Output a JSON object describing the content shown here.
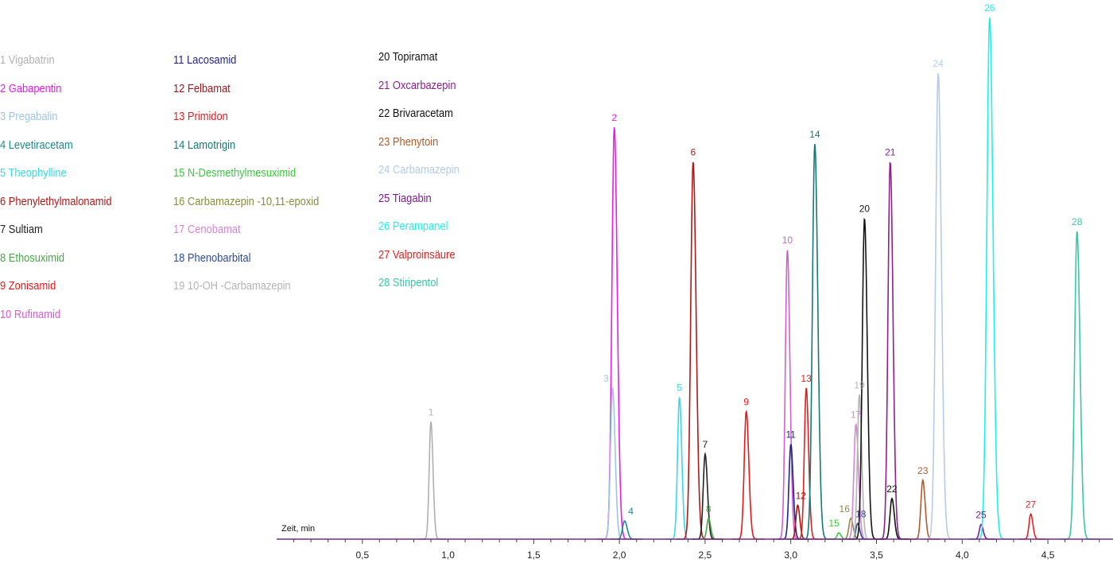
{
  "chart_data": {
    "type": "line",
    "xlabel": "Zeit, min",
    "xlim": [
      0.0,
      4.88
    ],
    "ylim": [
      0,
      1.0
    ],
    "grid": false,
    "legend_position": "top-left",
    "x_ticks": [
      "0,5",
      "1,0",
      "1,5",
      "2,0",
      "2,5",
      "3,0",
      "3,5",
      "4,0",
      "4,5"
    ],
    "x_tick_values": [
      0.5,
      1.0,
      1.5,
      2.0,
      2.5,
      3.0,
      3.5,
      4.0,
      4.5
    ],
    "series": [
      {
        "id": "1",
        "name": "1 Vigabatrin",
        "color": "#b0b0b0",
        "rt": 0.9,
        "height": 0.225,
        "width": 0.01
      },
      {
        "id": "2",
        "name": "2 Gabapentin",
        "color": "#e81ee8",
        "rt": 1.97,
        "height": 0.79,
        "width": 0.014
      },
      {
        "id": "3",
        "name": "3 Pregabalin",
        "color": "#9ec4e4",
        "rt": 1.96,
        "height": 0.29,
        "width": 0.012
      },
      {
        "id": "4",
        "name": "4 Levetiracetam",
        "color": "#1e8c8c",
        "rt": 2.03,
        "height": 0.035,
        "width": 0.012
      },
      {
        "id": "5",
        "name": "5 Theophylline",
        "color": "#36d8ea",
        "rt": 2.35,
        "height": 0.272,
        "width": 0.011
      },
      {
        "id": "6",
        "name": "6 Phenylethylmalonamid",
        "color": "#b01818",
        "rt": 2.43,
        "height": 0.723,
        "width": 0.014
      },
      {
        "id": "7",
        "name": "7 Sultiam",
        "color": "#222222",
        "rt": 2.5,
        "height": 0.163,
        "width": 0.011
      },
      {
        "id": "8",
        "name": "8 Ethosuximid",
        "color": "#4aa84a",
        "rt": 2.52,
        "height": 0.04,
        "width": 0.01
      },
      {
        "id": "9",
        "name": "9 Zonisamid",
        "color": "#e81818",
        "rt": 2.74,
        "height": 0.245,
        "width": 0.012
      },
      {
        "id": "10",
        "name": "10 Rufinamid",
        "color": "#d060d0",
        "rt": 2.98,
        "height": 0.555,
        "width": 0.012
      },
      {
        "id": "11",
        "name": "11 Lacosamid",
        "color": "#22228c",
        "rt": 3.0,
        "height": 0.182,
        "width": 0.011
      },
      {
        "id": "12",
        "name": "12 Felbamat",
        "color": "#a01818",
        "rt": 3.04,
        "height": 0.065,
        "width": 0.01
      },
      {
        "id": "13",
        "name": "13 Primidon",
        "color": "#e02020",
        "rt": 3.09,
        "height": 0.29,
        "width": 0.011
      },
      {
        "id": "14",
        "name": "14 Lamotrigin",
        "color": "#137a78",
        "rt": 3.14,
        "height": 0.758,
        "width": 0.014
      },
      {
        "id": "15",
        "name": "15 N-Desmethylmesuximid",
        "color": "#3cc83c",
        "rt": 3.28,
        "height": 0.012,
        "width": 0.01
      },
      {
        "id": "16",
        "name": "16 Carbamazepin -10,11-epoxid",
        "color": "#8c8c3c",
        "rt": 3.35,
        "height": 0.04,
        "width": 0.011
      },
      {
        "id": "17",
        "name": "17 Cenobamat",
        "color": "#d884d8",
        "rt": 3.38,
        "height": 0.22,
        "width": 0.012
      },
      {
        "id": "18",
        "name": "18 Phenobarbital",
        "color": "#2c4c9c",
        "rt": 3.39,
        "height": 0.03,
        "width": 0.01
      },
      {
        "id": "19",
        "name": "19 10-OH -Carbamazepin",
        "color": "#b4b4b4",
        "rt": 3.4,
        "height": 0.277,
        "width": 0.011
      },
      {
        "id": "20",
        "name": "20 Topiramat",
        "color": "#151515",
        "rt": 3.43,
        "height": 0.615,
        "width": 0.013
      },
      {
        "id": "21",
        "name": "21 Oxcarbazepin",
        "color": "#8c208c",
        "rt": 3.58,
        "height": 0.723,
        "width": 0.013
      },
      {
        "id": "22",
        "name": "22 Brivaracetam",
        "color": "#111111",
        "rt": 3.59,
        "height": 0.078,
        "width": 0.011
      },
      {
        "id": "23",
        "name": "23 Phenytoin",
        "color": "#b05a2a",
        "rt": 3.77,
        "height": 0.113,
        "width": 0.011
      },
      {
        "id": "24",
        "name": "24 Carbamazepin",
        "color": "#b4cce8",
        "rt": 3.86,
        "height": 0.893,
        "width": 0.015
      },
      {
        "id": "25",
        "name": "25 Tiagabin",
        "color": "#7a1c8c",
        "rt": 4.11,
        "height": 0.028,
        "width": 0.01
      },
      {
        "id": "26",
        "name": "26 Perampanel",
        "color": "#1ef0ee",
        "rt": 4.16,
        "height": 1.0,
        "width": 0.016
      },
      {
        "id": "27",
        "name": "27 Valproinsäure",
        "color": "#e82020",
        "rt": 4.4,
        "height": 0.048,
        "width": 0.01
      },
      {
        "id": "28",
        "name": "28 Stiripentol",
        "color": "#38c8a8",
        "rt": 4.67,
        "height": 0.59,
        "width": 0.014
      }
    ]
  }
}
